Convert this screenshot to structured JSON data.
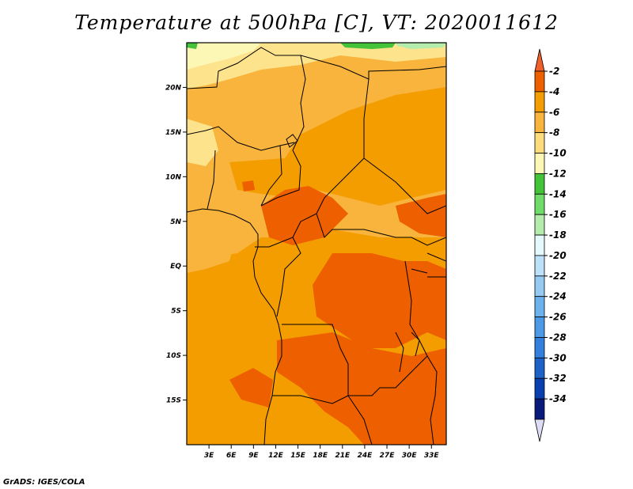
{
  "title": "Temperature at 500hPa [C], VT: 2020011612",
  "credit": "GrADS: IGES/COLA",
  "chart_data": {
    "type": "heatmap",
    "title": "Temperature at 500hPa [C], VT: 2020011612",
    "variable": "Temperature at 500hPa",
    "units": "C",
    "valid_time": "2020011612",
    "lon_range": [
      0,
      35
    ],
    "lat_range": [
      -20,
      25
    ],
    "x_ticks": [
      "3E",
      "6E",
      "9E",
      "12E",
      "15E",
      "18E",
      "21E",
      "24E",
      "27E",
      "30E",
      "33E"
    ],
    "x_tick_values": [
      3,
      6,
      9,
      12,
      15,
      18,
      21,
      24,
      27,
      30,
      33
    ],
    "y_ticks": [
      "20N",
      "15N",
      "10N",
      "5N",
      "EQ",
      "5S",
      "10S",
      "15S"
    ],
    "y_tick_values": [
      20,
      15,
      10,
      5,
      0,
      -5,
      -10,
      -15
    ],
    "colorbar_labels": [
      "-2",
      "-4",
      "-6",
      "-8",
      "-10",
      "-12",
      "-14",
      "-16",
      "-18",
      "-20",
      "-22",
      "-24",
      "-26",
      "-28",
      "-30",
      "-32",
      "-34"
    ],
    "colorbar_colors": [
      "#f0602a",
      "#ee5f00",
      "#f49d00",
      "#f8b43c",
      "#fcdc7c",
      "#fdf7b6",
      "#43c23a",
      "#6fdc6a",
      "#b4ecab",
      "#e5f8fb",
      "#bde1f8",
      "#95cbf3",
      "#6cb3ee",
      "#4c99e6",
      "#327fdd",
      "#1e62c8",
      "#0a3fb0",
      "#0a1a7a",
      "#dcdcf5"
    ],
    "regions_c": {
      "sahara_north": -10,
      "sahel": -8,
      "central_north": -6,
      "congo_basin": -4,
      "southern_hot_spots": -3,
      "atlantic_southwest": -6,
      "top_edge_green": -12
    }
  }
}
